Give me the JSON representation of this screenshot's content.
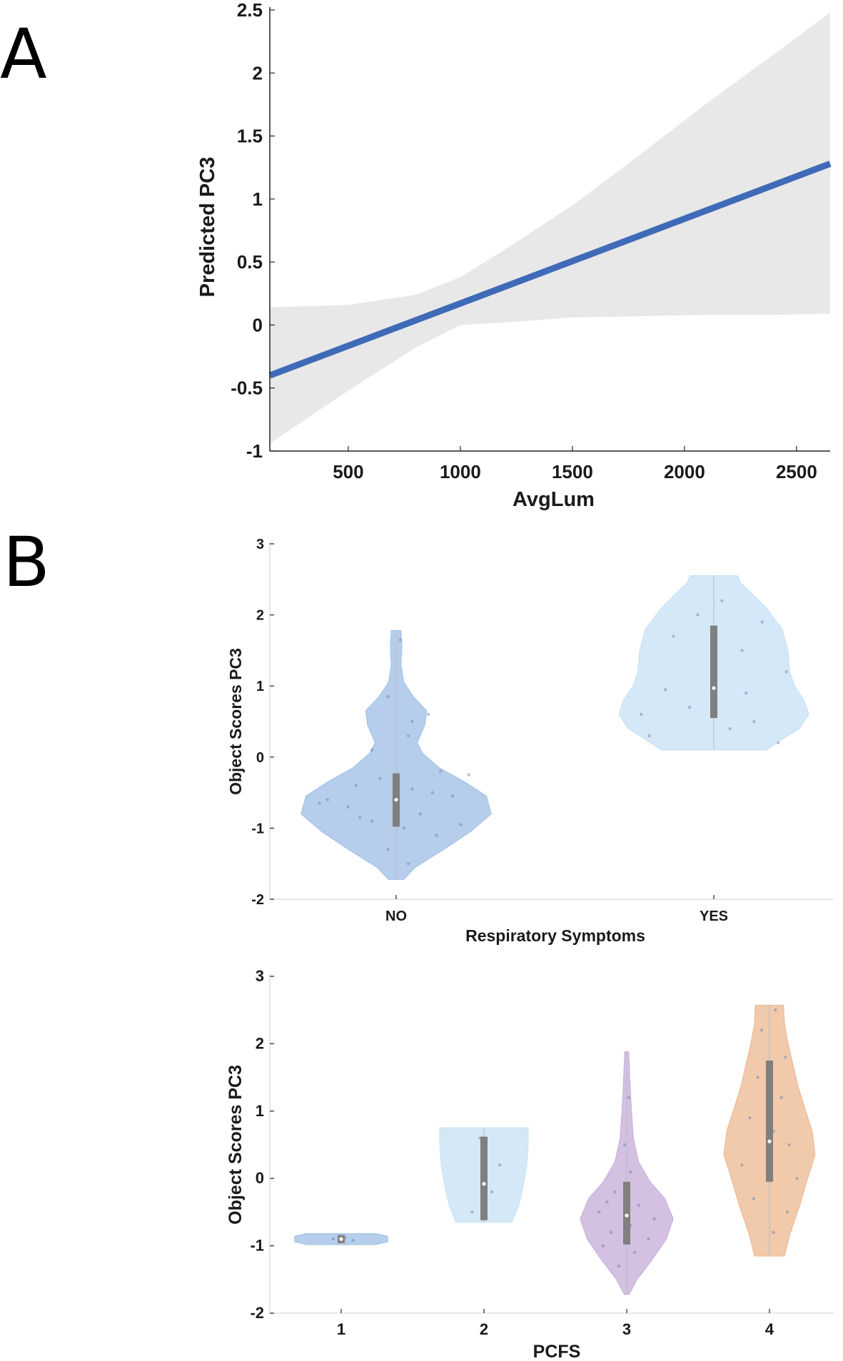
{
  "panels": {
    "a": "A",
    "b": "B"
  },
  "chart_data": [
    {
      "type": "line",
      "panel": "A",
      "xlabel": "AvgLum",
      "ylabel": "Predicted PC3",
      "xlim": [
        150,
        2650
      ],
      "ylim": [
        -1,
        2.5
      ],
      "xticks": [
        500,
        1000,
        1500,
        2000,
        2500
      ],
      "yticks": [
        -1,
        -0.5,
        0,
        0.5,
        1,
        1.5,
        2,
        2.5
      ],
      "line_color": "#3f6ab8",
      "band_color": "#e8e8e8",
      "fit": {
        "x": [
          150,
          2650
        ],
        "y": [
          -0.4,
          1.28
        ]
      },
      "ci_band": {
        "x": [
          150,
          500,
          800,
          1000,
          1200,
          1500,
          1800,
          2100,
          2400,
          2650
        ],
        "upper": [
          0.14,
          0.16,
          0.24,
          0.38,
          0.6,
          0.95,
          1.35,
          1.76,
          2.15,
          2.48
        ],
        "lower": [
          -0.94,
          -0.52,
          -0.18,
          0.0,
          0.02,
          0.06,
          0.07,
          0.08,
          0.08,
          0.09
        ]
      }
    },
    {
      "type": "violin",
      "panel": "B-top",
      "xlabel": "Respiratory Symptoms",
      "ylabel": "Object Scores PC3",
      "ylim": [
        -2,
        3
      ],
      "yticks": [
        -2,
        -1,
        0,
        1,
        2,
        3
      ],
      "categories": [
        "NO",
        "YES"
      ],
      "groups": [
        {
          "category": "NO",
          "color": "#a9c6e8",
          "min": -1.72,
          "max": 1.78,
          "q1": -0.98,
          "median": -0.6,
          "q3": -0.23,
          "density": {
            "y": [
              -1.72,
              -1.55,
              -1.3,
              -1.05,
              -0.8,
              -0.55,
              -0.35,
              -0.15,
              0.05,
              0.2,
              0.45,
              0.65,
              0.85,
              1.05,
              1.3,
              1.55,
              1.78
            ],
            "w": [
              0.08,
              0.2,
              0.5,
              0.78,
              1.0,
              0.95,
              0.72,
              0.45,
              0.28,
              0.22,
              0.3,
              0.32,
              0.18,
              0.08,
              0.05,
              0.06,
              0.05
            ]
          },
          "points": [
            [
              -0.45,
              0.2
            ],
            [
              -0.9,
              -0.3
            ],
            [
              -1.1,
              0.5
            ],
            [
              -0.7,
              -0.6
            ],
            [
              -0.55,
              0.7
            ],
            [
              -0.3,
              -0.2
            ],
            [
              -0.8,
              0.3
            ],
            [
              -1.3,
              -0.1
            ],
            [
              -1.5,
              0.15
            ],
            [
              -0.2,
              0.55
            ],
            [
              0.1,
              -0.3
            ],
            [
              0.5,
              0.2
            ],
            [
              0.6,
              0.4
            ],
            [
              -0.6,
              -0.85
            ],
            [
              -0.95,
              0.8
            ],
            [
              -0.4,
              -0.5
            ],
            [
              -1.0,
              0.1
            ],
            [
              -0.25,
              0.9
            ],
            [
              0.85,
              -0.1
            ],
            [
              1.65,
              0.05
            ],
            [
              -0.65,
              -0.95
            ],
            [
              -0.5,
              0.45
            ],
            [
              -0.85,
              -0.45
            ],
            [
              0.3,
              0.15
            ]
          ]
        },
        {
          "category": "YES",
          "color": "#cde4f6",
          "min": 0.1,
          "max": 2.55,
          "q1": 0.55,
          "median": 0.97,
          "q3": 1.85,
          "density": {
            "y": [
              0.1,
              0.25,
              0.4,
              0.6,
              0.8,
              1.0,
              1.2,
              1.5,
              1.8,
              2.1,
              2.3,
              2.45,
              2.55
            ],
            "w": [
              0.55,
              0.72,
              0.9,
              1.0,
              0.95,
              0.85,
              0.8,
              0.78,
              0.72,
              0.55,
              0.4,
              0.28,
              0.25
            ]
          },
          "points": [
            [
              0.95,
              -0.6
            ],
            [
              1.5,
              0.35
            ],
            [
              0.5,
              0.5
            ],
            [
              2.0,
              -0.2
            ],
            [
              0.2,
              0.8
            ],
            [
              1.9,
              0.6
            ],
            [
              0.7,
              -0.3
            ],
            [
              1.2,
              0.9
            ],
            [
              0.3,
              -0.8
            ],
            [
              2.2,
              0.1
            ],
            [
              0.9,
              0.4
            ],
            [
              1.7,
              -0.5
            ],
            [
              0.6,
              -0.9
            ],
            [
              0.4,
              0.2
            ]
          ]
        }
      ]
    },
    {
      "type": "violin",
      "panel": "B-bottom",
      "xlabel": "PCFS",
      "ylabel": "Object Scores PC3",
      "ylim": [
        -2,
        3
      ],
      "yticks": [
        -2,
        -1,
        0,
        1,
        2,
        3
      ],
      "categories": [
        "1",
        "2",
        "3",
        "4"
      ],
      "groups": [
        {
          "category": "1",
          "color": "#a9c6e8",
          "min": -0.98,
          "max": -0.82,
          "q1": -0.96,
          "median": -0.9,
          "q3": -0.84,
          "density": {
            "y": [
              -0.98,
              -0.94,
              -0.9,
              -0.86,
              -0.82
            ],
            "w": [
              0.75,
              1.0,
              1.0,
              1.0,
              0.75
            ]
          },
          "points": [
            [
              -0.9,
              -0.2
            ],
            [
              -0.92,
              0.3
            ],
            [
              -0.88,
              0.1
            ]
          ]
        },
        {
          "category": "2",
          "color": "#cde4f6",
          "min": -0.65,
          "max": 0.75,
          "q1": -0.62,
          "median": -0.08,
          "q3": 0.62,
          "density": {
            "y": [
              -0.65,
              -0.4,
              -0.1,
              0.2,
              0.5,
              0.75
            ],
            "w": [
              0.6,
              0.75,
              0.85,
              0.92,
              0.95,
              0.95
            ]
          },
          "points": [
            [
              0.2,
              0.4
            ],
            [
              -0.5,
              -0.3
            ],
            [
              0.6,
              -0.1
            ],
            [
              -0.2,
              0.2
            ]
          ]
        },
        {
          "category": "3",
          "color": "#cdb5dc",
          "min": -1.72,
          "max": 1.88,
          "q1": -0.98,
          "median": -0.55,
          "q3": -0.05,
          "density": {
            "y": [
              -1.72,
              -1.5,
              -1.2,
              -0.9,
              -0.6,
              -0.3,
              -0.05,
              0.25,
              0.6,
              1.0,
              1.4,
              1.88
            ],
            "w": [
              0.05,
              0.22,
              0.55,
              0.85,
              1.0,
              0.82,
              0.5,
              0.25,
              0.14,
              0.1,
              0.07,
              0.04
            ]
          },
          "points": [
            [
              -0.4,
              0.3
            ],
            [
              -0.8,
              -0.4
            ],
            [
              -1.1,
              0.2
            ],
            [
              -0.6,
              0.7
            ],
            [
              -0.2,
              -0.3
            ],
            [
              -0.9,
              0.55
            ],
            [
              -1.3,
              -0.2
            ],
            [
              0.1,
              0.1
            ],
            [
              -0.5,
              -0.7
            ],
            [
              -0.7,
              0.1
            ],
            [
              0.5,
              -0.05
            ],
            [
              1.2,
              0.05
            ],
            [
              -0.35,
              -0.5
            ],
            [
              -1.0,
              -0.6
            ]
          ]
        },
        {
          "category": "4",
          "color": "#eebf9c",
          "min": -1.15,
          "max": 2.57,
          "q1": -0.05,
          "median": 0.55,
          "q3": 1.75,
          "density": {
            "y": [
              -1.15,
              -0.8,
              -0.4,
              0.0,
              0.35,
              0.7,
              1.0,
              1.35,
              1.7,
              2.0,
              2.3,
              2.57
            ],
            "w": [
              0.32,
              0.45,
              0.65,
              0.82,
              0.98,
              0.92,
              0.78,
              0.62,
              0.5,
              0.4,
              0.32,
              0.3
            ]
          },
          "points": [
            [
              0.5,
              0.5
            ],
            [
              -0.3,
              -0.4
            ],
            [
              1.2,
              0.3
            ],
            [
              2.2,
              -0.2
            ],
            [
              0.2,
              -0.7
            ],
            [
              1.8,
              0.4
            ],
            [
              -0.8,
              0.1
            ],
            [
              0.9,
              -0.5
            ],
            [
              0.0,
              0.7
            ],
            [
              1.5,
              -0.3
            ],
            [
              2.5,
              0.15
            ],
            [
              -0.5,
              0.45
            ],
            [
              0.7,
              0.1
            ]
          ]
        }
      ]
    }
  ]
}
